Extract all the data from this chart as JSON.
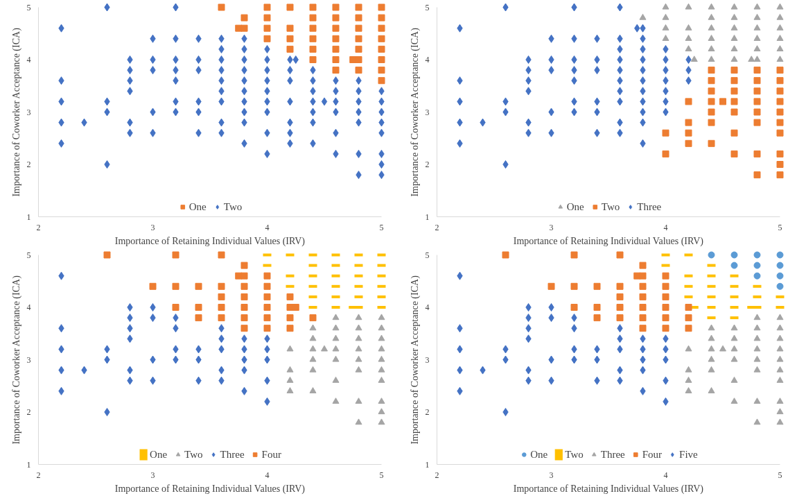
{
  "chart_data": [
    {
      "type": "scatter",
      "xlabel": "Importance of Retaining Individual Values (IRV)",
      "ylabel": "Importance of Coworker Acceptance (ICA)",
      "xlim": [
        2,
        5
      ],
      "xticks": [
        2,
        3,
        4,
        5
      ],
      "ylim": [
        1,
        5
      ],
      "yticks": [
        1,
        2,
        3,
        4,
        5
      ],
      "grid": false,
      "legend": "bottom",
      "series": [
        {
          "name": "One",
          "color": "#ed7d31",
          "marker": "square",
          "x": [
            3.6,
            3.75,
            3.8,
            3.8,
            4,
            4,
            4,
            4,
            4.2,
            4.2,
            4.2,
            4.2,
            4.4,
            4.4,
            4.4,
            4.4,
            4.4,
            4.4,
            4.6,
            4.6,
            4.6,
            4.6,
            4.6,
            4.6,
            4.6,
            4.75,
            4.8,
            4.8,
            4.8,
            4.8,
            4.8,
            4.8,
            4.8,
            5,
            5,
            5,
            5,
            5,
            5,
            5,
            5
          ],
          "values": [
            5,
            4.6,
            4.8,
            4.6,
            5,
            4.8,
            4.6,
            4.4,
            5,
            4.6,
            4.4,
            4.2,
            5,
            4.8,
            4.6,
            4.4,
            4.2,
            4,
            5,
            4.8,
            4.6,
            4.4,
            4.2,
            4,
            3.8,
            4,
            5,
            4.8,
            4.6,
            4.4,
            4.2,
            4,
            3.8,
            5,
            4.8,
            4.6,
            4.4,
            4.2,
            4,
            3.8,
            3.6
          ]
        },
        {
          "name": "Two",
          "color": "#4472c4",
          "marker": "diamond",
          "x": [
            2.2,
            2.2,
            2.2,
            2.2,
            2.2,
            2.4,
            2.6,
            2.6,
            2.6,
            2.6,
            2.8,
            2.8,
            2.8,
            2.8,
            2.8,
            2.8,
            3,
            3,
            3,
            3,
            3,
            3.2,
            3.2,
            3.2,
            3.2,
            3.2,
            3.2,
            3.2,
            3.4,
            3.4,
            3.4,
            3.4,
            3.4,
            3.4,
            3.6,
            3.6,
            3.6,
            3.6,
            3.6,
            3.6,
            3.6,
            3.6,
            3.6,
            3.8,
            3.8,
            3.8,
            3.8,
            3.8,
            3.8,
            3.8,
            3.8,
            3.8,
            3.8,
            4,
            4,
            4,
            4,
            4,
            4,
            4,
            4,
            4,
            4.2,
            4.2,
            4.2,
            4.2,
            4.2,
            4.2,
            4.2,
            4.25,
            4.4,
            4.4,
            4.4,
            4.4,
            4.4,
            4.4,
            4.4,
            4.5,
            4.6,
            4.6,
            4.6,
            4.6,
            4.6,
            4.6,
            4.8,
            4.8,
            4.8,
            4.8,
            4.8,
            4.8,
            4.8,
            5,
            5,
            5,
            5,
            5,
            5,
            5,
            5
          ],
          "values": [
            4.6,
            3.6,
            3.2,
            2.8,
            2.4,
            2.8,
            5,
            3.2,
            3,
            2,
            4,
            3.8,
            3.6,
            3.4,
            2.8,
            2.6,
            4.4,
            4,
            3.8,
            3,
            2.6,
            5,
            4.4,
            4,
            3.8,
            3.6,
            3.2,
            3,
            4.4,
            4,
            3.8,
            3.2,
            3,
            2.6,
            4.4,
            4.2,
            4,
            3.8,
            3.6,
            3.4,
            3.2,
            2.8,
            2.6,
            4.4,
            4.2,
            4,
            3.8,
            3.6,
            3.4,
            3.2,
            3,
            2.8,
            2.4,
            4.2,
            4,
            3.8,
            3.6,
            3.4,
            3.2,
            3,
            2.6,
            2.2,
            4,
            3.8,
            3.6,
            3.2,
            2.8,
            2.6,
            2.4,
            4,
            3.8,
            3.6,
            3.4,
            3.2,
            3,
            2.8,
            2.4,
            3.2,
            3.6,
            3.4,
            3.2,
            3,
            2.6,
            2.2,
            3.6,
            3.4,
            3.2,
            3,
            2.8,
            2.2,
            1.8,
            3.4,
            3.2,
            3,
            2.8,
            2.6,
            2.2,
            2,
            1.8
          ]
        }
      ]
    },
    {
      "type": "scatter",
      "xlabel": "Importance of Retaining Individual Values (IRV)",
      "ylabel": "Importance of Coworker Acceptance (ICA)",
      "xlim": [
        2,
        5
      ],
      "xticks": [
        2,
        3,
        4,
        5
      ],
      "ylim": [
        1,
        5
      ],
      "yticks": [
        1,
        2,
        3,
        4,
        5
      ],
      "grid": false,
      "legend": "bottom",
      "series": [
        {
          "name": "One",
          "color": "#a5a5a5",
          "marker": "triangle",
          "x": [
            3.8,
            4,
            4,
            4,
            4,
            4.2,
            4.2,
            4.2,
            4.2,
            4.25,
            4.4,
            4.4,
            4.4,
            4.4,
            4.4,
            4.4,
            4.6,
            4.6,
            4.6,
            4.6,
            4.6,
            4.6,
            4.75,
            4.8,
            4.8,
            4.8,
            4.8,
            4.8,
            4.8,
            5,
            5,
            5,
            5,
            5,
            5
          ],
          "values": [
            4.8,
            5,
            4.8,
            4.6,
            4.4,
            5,
            4.6,
            4.4,
            4.2,
            4,
            5,
            4.8,
            4.6,
            4.4,
            4.2,
            4,
            5,
            4.8,
            4.6,
            4.4,
            4.2,
            4,
            4,
            5,
            4.8,
            4.6,
            4.4,
            4.2,
            4,
            5,
            4.8,
            4.6,
            4.4,
            4.2,
            4
          ]
        },
        {
          "name": "Two",
          "color": "#ed7d31",
          "marker": "square",
          "x": [
            4,
            4,
            4.2,
            4.2,
            4.2,
            4.2,
            4.4,
            4.4,
            4.4,
            4.4,
            4.4,
            4.4,
            4.4,
            4.5,
            4.6,
            4.6,
            4.6,
            4.6,
            4.6,
            4.6,
            4.6,
            4.8,
            4.8,
            4.8,
            4.8,
            4.8,
            4.8,
            4.8,
            4.8,
            5,
            5,
            5,
            5,
            5,
            5,
            5,
            5,
            5,
            5
          ],
          "values": [
            2.6,
            2.2,
            3.2,
            2.8,
            2.6,
            2.4,
            3.8,
            3.6,
            3.4,
            3.2,
            3,
            2.8,
            2.4,
            3.2,
            3.8,
            3.6,
            3.4,
            3.2,
            3,
            2.6,
            2.2,
            3.8,
            3.6,
            3.4,
            3.2,
            3,
            2.8,
            2.2,
            1.8,
            3.8,
            3.6,
            3.4,
            3.2,
            3,
            2.8,
            2.6,
            2.2,
            2,
            1.8
          ]
        },
        {
          "name": "Three",
          "color": "#4472c4",
          "marker": "diamond",
          "x": [
            2.2,
            2.2,
            2.2,
            2.2,
            2.2,
            2.4,
            2.6,
            2.6,
            2.6,
            2.6,
            2.8,
            2.8,
            2.8,
            2.8,
            2.8,
            2.8,
            3,
            3,
            3,
            3,
            3,
            3.2,
            3.2,
            3.2,
            3.2,
            3.2,
            3.2,
            3.2,
            3.4,
            3.4,
            3.4,
            3.4,
            3.4,
            3.4,
            3.6,
            3.6,
            3.6,
            3.6,
            3.6,
            3.6,
            3.6,
            3.6,
            3.6,
            3.6,
            3.75,
            3.8,
            3.8,
            3.8,
            3.8,
            3.8,
            3.8,
            3.8,
            3.8,
            3.8,
            3.8,
            3.8,
            4,
            4,
            4,
            4,
            4,
            4,
            4,
            4.2,
            4.2,
            4.2
          ],
          "values": [
            4.6,
            3.6,
            3.2,
            2.8,
            2.4,
            2.8,
            5,
            3.2,
            3,
            2,
            4,
            3.8,
            3.6,
            3.4,
            2.8,
            2.6,
            4.4,
            4,
            3.8,
            3,
            2.6,
            5,
            4.4,
            4,
            3.8,
            3.6,
            3.2,
            3,
            4.4,
            4,
            3.8,
            3.2,
            3,
            2.6,
            5,
            4.4,
            4.2,
            4,
            3.8,
            3.6,
            3.4,
            3.2,
            2.8,
            2.6,
            4.6,
            4.6,
            4.4,
            4.2,
            4,
            3.8,
            3.6,
            3.4,
            3.2,
            3,
            2.8,
            2.4,
            4.2,
            4,
            3.8,
            3.6,
            3.4,
            3.2,
            3,
            4,
            3.8,
            3.6
          ]
        }
      ]
    },
    {
      "type": "scatter",
      "xlabel": "Importance of Retaining Individual Values (IRV)",
      "ylabel": "Importance of Coworker Acceptance (ICA)",
      "xlim": [
        2,
        5
      ],
      "xticks": [
        2,
        3,
        4,
        5
      ],
      "ylim": [
        1,
        5
      ],
      "yticks": [
        1,
        2,
        3,
        4,
        5
      ],
      "grid": false,
      "legend": "bottom",
      "series": [
        {
          "name": "One",
          "color": "#ffc000",
          "x": [
            4,
            4,
            4.2,
            4.2,
            4.2,
            4.4,
            4.4,
            4.4,
            4.4,
            4.4,
            4.4,
            4.6,
            4.6,
            4.6,
            4.6,
            4.6,
            4.6,
            4.75,
            4.8,
            4.8,
            4.8,
            4.8,
            4.8,
            4.8,
            5,
            5,
            5,
            5,
            5,
            5
          ],
          "values": [
            5,
            4.8,
            5,
            4.6,
            4.4,
            5,
            4.8,
            4.6,
            4.4,
            4.2,
            4,
            5,
            4.8,
            4.6,
            4.4,
            4.2,
            4,
            4,
            5,
            4.8,
            4.6,
            4.4,
            4.2,
            4,
            5,
            4.8,
            4.6,
            4.4,
            4.2,
            4
          ]
        },
        {
          "name": "Two",
          "color": "#a5a5a5",
          "marker": "triangle",
          "x": [
            4.2,
            4.2,
            4.2,
            4.2,
            4.4,
            4.4,
            4.4,
            4.4,
            4.4,
            4.4,
            4.5,
            4.6,
            4.6,
            4.6,
            4.6,
            4.6,
            4.6,
            4.6,
            4.8,
            4.8,
            4.8,
            4.8,
            4.8,
            4.8,
            4.8,
            4.8,
            5,
            5,
            5,
            5,
            5,
            5,
            5,
            5,
            5,
            5
          ],
          "values": [
            3.2,
            2.8,
            2.6,
            2.4,
            3.6,
            3.4,
            3.2,
            3,
            2.8,
            2.4,
            3.2,
            3.8,
            3.6,
            3.4,
            3.2,
            3,
            2.6,
            2.2,
            3.8,
            3.6,
            3.4,
            3.2,
            3,
            2.8,
            2.2,
            1.8,
            3.8,
            3.6,
            3.4,
            3.2,
            3,
            2.8,
            2.6,
            2.2,
            2,
            1.8
          ]
        },
        {
          "name": "Three",
          "color": "#4472c4",
          "marker": "diamond",
          "x": [
            2.2,
            2.2,
            2.2,
            2.2,
            2.2,
            2.4,
            2.6,
            2.6,
            2.6,
            2.8,
            2.8,
            2.8,
            2.8,
            2.8,
            2.8,
            3,
            3,
            3,
            3,
            3.2,
            3.2,
            3.2,
            3.2,
            3.4,
            3.4,
            3.4,
            3.6,
            3.6,
            3.6,
            3.6,
            3.6,
            3.8,
            3.8,
            3.8,
            3.8,
            3.8,
            4,
            4,
            4,
            4,
            4
          ],
          "values": [
            4.6,
            3.6,
            3.2,
            2.8,
            2.4,
            2.8,
            3.2,
            3,
            2,
            4,
            3.8,
            3.6,
            3.4,
            2.8,
            2.6,
            4,
            3.8,
            3,
            2.6,
            3.8,
            3.6,
            3.2,
            3,
            3.2,
            3,
            2.6,
            3.6,
            3.4,
            3.2,
            2.8,
            2.6,
            3.4,
            3.2,
            3,
            2.8,
            2.4,
            3.4,
            3.2,
            3,
            2.6,
            2.2
          ]
        },
        {
          "name": "Four",
          "color": "#ed7d31",
          "marker": "square",
          "x": [
            2.6,
            3,
            3.2,
            3.2,
            3.2,
            3.4,
            3.4,
            3.4,
            3.6,
            3.6,
            3.6,
            3.6,
            3.6,
            3.75,
            3.8,
            3.8,
            3.8,
            3.8,
            3.8,
            3.8,
            3.8,
            4,
            4,
            4,
            4,
            4,
            4,
            4.2,
            4.2,
            4.2,
            4.2,
            4.25,
            4.4
          ],
          "values": [
            5,
            4.4,
            5,
            4.4,
            4,
            4.4,
            4,
            3.8,
            5,
            4.4,
            4.2,
            4,
            3.8,
            4.6,
            4.8,
            4.6,
            4.4,
            4.2,
            4,
            3.8,
            3.6,
            4.6,
            4.4,
            4.2,
            4,
            3.8,
            3.6,
            4.2,
            4,
            3.8,
            3.6,
            4,
            3.8
          ]
        }
      ]
    },
    {
      "type": "scatter",
      "xlabel": "Importance of Retaining Individual Values (IRV)",
      "ylabel": "Importance of Coworker Acceptance (ICA)",
      "xlim": [
        2,
        5
      ],
      "xticks": [
        2,
        3,
        4,
        5
      ],
      "ylim": [
        1,
        5
      ],
      "yticks": [
        1,
        2,
        3,
        4,
        5
      ],
      "grid": false,
      "legend": "bottom",
      "series": [
        {
          "name": "One",
          "color": "#5b9bd5",
          "marker": "circle",
          "x": [
            4.4,
            4.6,
            4.6,
            4.8,
            4.8,
            4.8,
            5,
            5,
            5,
            5
          ],
          "values": [
            5,
            5,
            4.8,
            5,
            4.8,
            4.6,
            5,
            4.8,
            4.6,
            4.4
          ]
        },
        {
          "name": "Two",
          "color": "#ffc000",
          "x": [
            4,
            4,
            4.2,
            4.2,
            4.2,
            4.2,
            4.25,
            4.4,
            4.4,
            4.4,
            4.4,
            4.4,
            4.4,
            4.6,
            4.6,
            4.6,
            4.6,
            4.6,
            4.75,
            4.8,
            4.8,
            4.8,
            5,
            5
          ],
          "values": [
            5,
            4.8,
            5,
            4.6,
            4.4,
            4.2,
            4,
            4.8,
            4.6,
            4.4,
            4.2,
            4,
            3.8,
            4.6,
            4.4,
            4.2,
            4,
            3.8,
            4,
            4.4,
            4.2,
            4,
            4.2,
            4
          ]
        },
        {
          "name": "Three",
          "color": "#a5a5a5",
          "marker": "triangle",
          "x": [
            4.2,
            4.2,
            4.2,
            4.2,
            4.4,
            4.4,
            4.4,
            4.4,
            4.4,
            4.4,
            4.5,
            4.6,
            4.6,
            4.6,
            4.6,
            4.6,
            4.6,
            4.8,
            4.8,
            4.8,
            4.8,
            4.8,
            4.8,
            4.8,
            4.8,
            5,
            5,
            5,
            5,
            5,
            5,
            5,
            5,
            5,
            5
          ],
          "values": [
            3.2,
            2.8,
            2.6,
            2.4,
            3.6,
            3.4,
            3.2,
            3,
            2.8,
            2.4,
            3.2,
            3.6,
            3.4,
            3.2,
            3,
            2.6,
            2.2,
            3.8,
            3.6,
            3.4,
            3.2,
            3,
            2.8,
            2.2,
            1.8,
            3.8,
            3.6,
            3.4,
            3.2,
            3,
            2.8,
            2.6,
            2.2,
            2,
            1.8
          ]
        },
        {
          "name": "Four",
          "color": "#ed7d31",
          "marker": "square",
          "x": [
            2.6,
            3,
            3.2,
            3.2,
            3.2,
            3.4,
            3.4,
            3.4,
            3.6,
            3.6,
            3.6,
            3.6,
            3.6,
            3.75,
            3.8,
            3.8,
            3.8,
            3.8,
            3.8,
            3.8,
            3.8,
            4,
            4,
            4,
            4,
            4,
            4,
            4.2,
            4.2,
            4.2
          ],
          "values": [
            5,
            4.4,
            5,
            4.4,
            4,
            4.4,
            4,
            3.8,
            5,
            4.4,
            4.2,
            4,
            3.8,
            4.6,
            4.8,
            4.6,
            4.4,
            4.2,
            4,
            3.8,
            3.6,
            4.6,
            4.4,
            4.2,
            4,
            3.8,
            3.6,
            4,
            3.8,
            3.6
          ]
        },
        {
          "name": "Five",
          "color": "#4472c4",
          "marker": "diamond",
          "x": [
            2.2,
            2.2,
            2.2,
            2.2,
            2.2,
            2.4,
            2.6,
            2.6,
            2.6,
            2.8,
            2.8,
            2.8,
            2.8,
            2.8,
            2.8,
            3,
            3,
            3,
            3,
            3.2,
            3.2,
            3.2,
            3.2,
            3.4,
            3.4,
            3.4,
            3.6,
            3.6,
            3.6,
            3.6,
            3.6,
            3.8,
            3.8,
            3.8,
            3.8,
            3.8,
            4,
            4,
            4,
            4,
            4
          ],
          "values": [
            4.6,
            3.6,
            3.2,
            2.8,
            2.4,
            2.8,
            3.2,
            3,
            2,
            4,
            3.8,
            3.6,
            3.4,
            2.8,
            2.6,
            4,
            3.8,
            3,
            2.6,
            3.8,
            3.6,
            3.2,
            3,
            3.2,
            3,
            2.6,
            3.6,
            3.4,
            3.2,
            2.8,
            2.6,
            3.4,
            3.2,
            3,
            2.8,
            2.4,
            3.4,
            3.2,
            3,
            2.6,
            2.2
          ]
        }
      ]
    }
  ]
}
